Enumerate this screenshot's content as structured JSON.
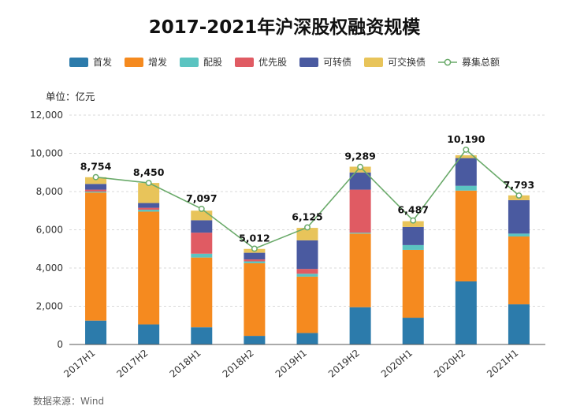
{
  "chart_data": {
    "type": "bar",
    "stacked": true,
    "title": "2017-2021年沪深股权融资规模",
    "unit_label": "单位：亿元",
    "source": "数据来源：Wind",
    "categories": [
      "2017H1",
      "2017H2",
      "2018H1",
      "2018H2",
      "2019H1",
      "2019H2",
      "2020H1",
      "2020H2",
      "2021H1"
    ],
    "ylim": [
      0,
      12000
    ],
    "yticks": [
      0,
      2000,
      4000,
      6000,
      8000,
      10000,
      12000
    ],
    "ytick_labels": [
      "0",
      "2,000",
      "4,000",
      "6,000",
      "8,000",
      "10,000",
      "12,000"
    ],
    "grid": true,
    "legend_position": "top",
    "series": [
      {
        "name": "首发",
        "color": "#2c7bab",
        "values": [
          1250,
          1050,
          900,
          450,
          600,
          1950,
          1400,
          3300,
          2100
        ]
      },
      {
        "name": "增发",
        "color": "#f58a1f",
        "values": [
          6700,
          5900,
          3650,
          3800,
          2950,
          3850,
          3550,
          4750,
          3550
        ]
      },
      {
        "name": "配股",
        "color": "#5bc4c1",
        "values": [
          50,
          100,
          200,
          100,
          150,
          50,
          250,
          250,
          150
        ]
      },
      {
        "name": "优先股",
        "color": "#e05b63",
        "values": [
          100,
          100,
          1100,
          100,
          250,
          2250,
          0,
          0,
          0
        ]
      },
      {
        "name": "可转债",
        "color": "#4a5aa0",
        "values": [
          300,
          250,
          650,
          350,
          1500,
          900,
          950,
          1450,
          1750
        ]
      },
      {
        "name": "可交换债",
        "color": "#e8c45a",
        "values": [
          350,
          1050,
          500,
          200,
          650,
          300,
          300,
          150,
          250
        ]
      }
    ],
    "line_series": {
      "name": "募集总额",
      "color": "#6aaa6a",
      "values": [
        8754,
        8450,
        7097,
        5012,
        6125,
        9289,
        6487,
        10190,
        7793
      ],
      "labels": [
        "8,754",
        "8,450",
        "7,097",
        "5,012",
        "6,125",
        "9,289",
        "6,487",
        "10,190",
        "7,793"
      ]
    }
  }
}
